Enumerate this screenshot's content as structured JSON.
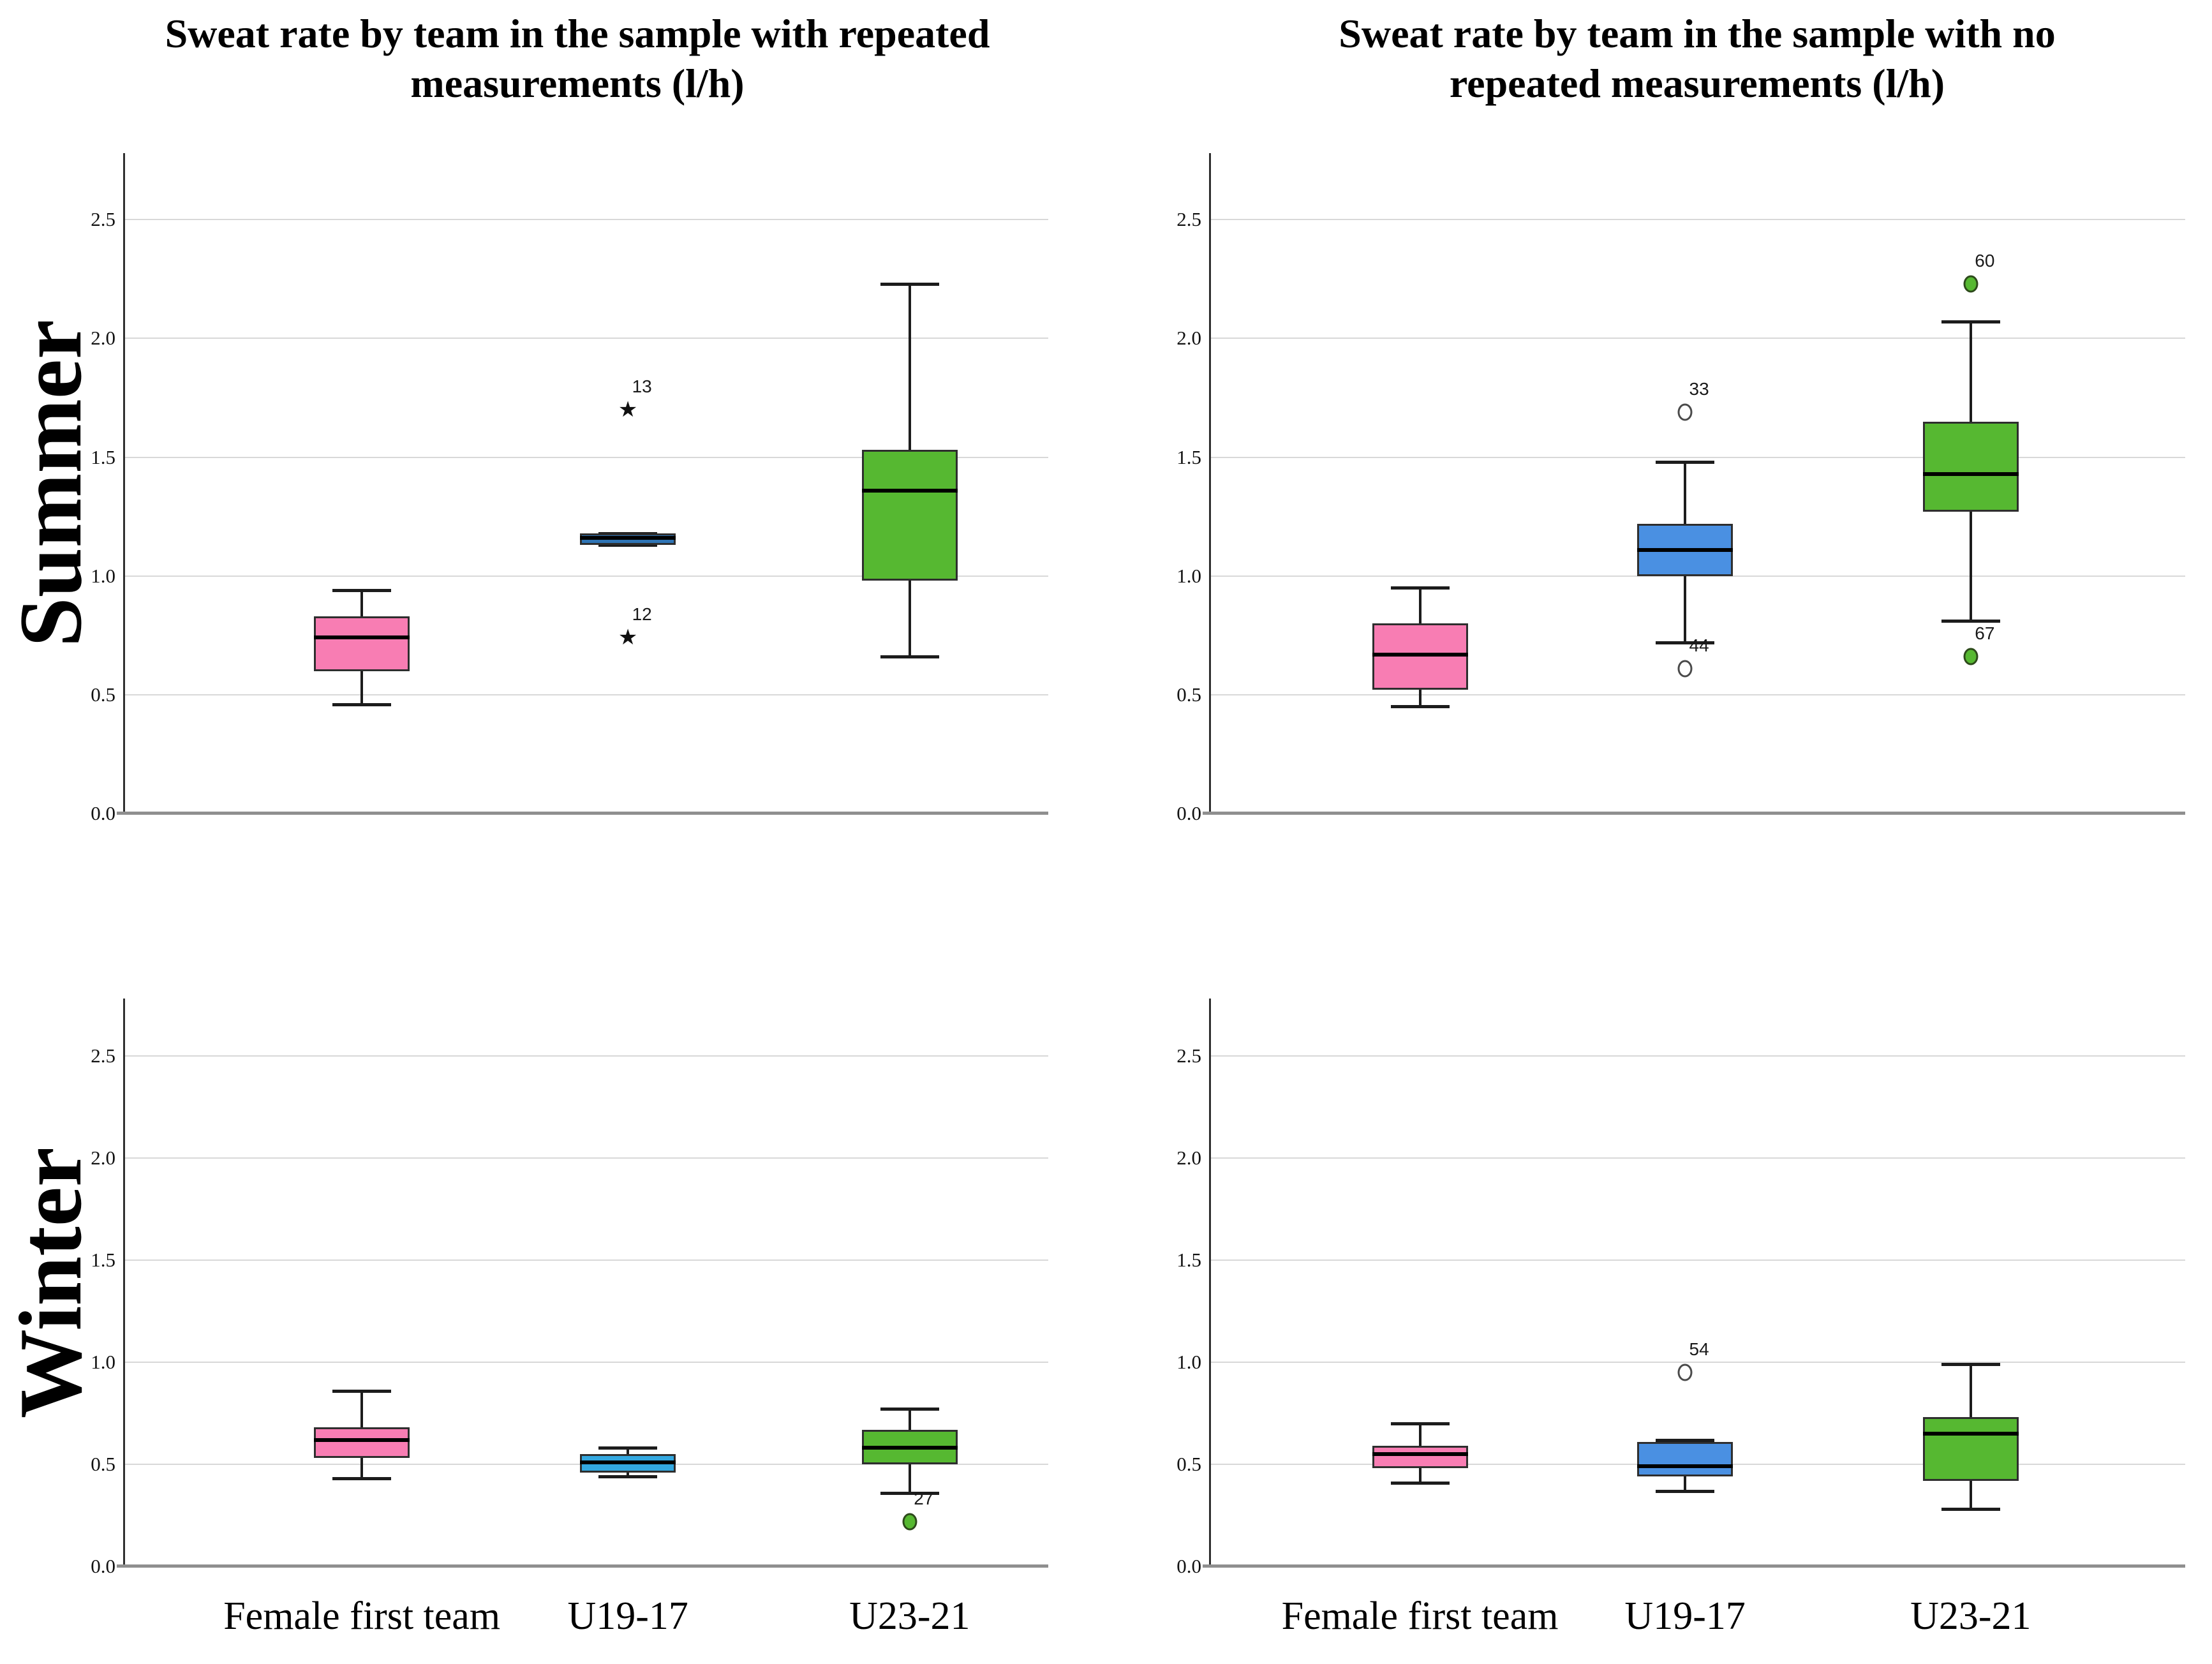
{
  "chart_data": {
    "type": "boxplot",
    "unit": "l/h",
    "col_titles": [
      "Sweat rate by team in the sample with repeated\nmeasurements (l/h)",
      "Sweat rate by team in the sample with no\nrepeated measurements (l/h)"
    ],
    "row_labels": [
      "Summer",
      "Winter"
    ],
    "categories": [
      "Female first team",
      "U19-17",
      "U23-21"
    ],
    "value_axis": {
      "min": 0,
      "max": 2.78,
      "ticks": [
        "0.0",
        "0.5",
        "1.0",
        "1.5",
        "2.0",
        "2.5"
      ],
      "tick_values": [
        0,
        0.5,
        1.0,
        1.5,
        2.0,
        2.5
      ],
      "gridline_color": "#d8d8d8",
      "grid": true
    },
    "legend": "none",
    "panels": [
      {
        "season": "Summer",
        "sample": "repeated measurements",
        "boxes": [
          {
            "team": "Female first team",
            "fill": "#F87DB3",
            "whisker_low": 0.46,
            "q1": 0.6,
            "median": 0.74,
            "q3": 0.83,
            "whisker_high": 0.94,
            "outliers": []
          },
          {
            "team": "U19-17",
            "fill": "#2E74B5",
            "whisker_low": 1.13,
            "q1": 1.13,
            "median": 1.16,
            "q3": 1.18,
            "whisker_high": 1.18,
            "outliers": [
              {
                "label": "13",
                "value": 1.7,
                "marker": "star"
              },
              {
                "label": "12",
                "value": 0.74,
                "marker": "star"
              }
            ]
          },
          {
            "team": "U23-21",
            "fill": "#56B831",
            "whisker_low": 0.66,
            "q1": 0.98,
            "median": 1.36,
            "q3": 1.53,
            "whisker_high": 2.23,
            "outliers": []
          }
        ]
      },
      {
        "season": "Summer",
        "sample": "no repeated measurements",
        "boxes": [
          {
            "team": "Female first team",
            "fill": "#F87DB3",
            "whisker_low": 0.45,
            "q1": 0.52,
            "median": 0.67,
            "q3": 0.8,
            "whisker_high": 0.95,
            "outliers": []
          },
          {
            "team": "U19-17",
            "fill": "#4A90E2",
            "whisker_low": 0.72,
            "q1": 1.0,
            "median": 1.11,
            "q3": 1.22,
            "whisker_high": 1.48,
            "outliers": [
              {
                "label": "33",
                "value": 1.69,
                "marker": "open-circle"
              },
              {
                "label": "44",
                "value": 0.61,
                "marker": "open-circle"
              }
            ]
          },
          {
            "team": "U23-21",
            "fill": "#56B831",
            "whisker_low": 0.81,
            "q1": 1.27,
            "median": 1.43,
            "q3": 1.65,
            "whisker_high": 2.07,
            "outliers": [
              {
                "label": "60",
                "value": 2.23,
                "marker": "filled-circle"
              },
              {
                "label": "67",
                "value": 0.66,
                "marker": "filled-circle"
              }
            ]
          }
        ]
      },
      {
        "season": "Winter",
        "sample": "repeated measurements",
        "boxes": [
          {
            "team": "Female first team",
            "fill": "#F87DB3",
            "whisker_low": 0.43,
            "q1": 0.53,
            "median": 0.62,
            "q3": 0.68,
            "whisker_high": 0.86,
            "outliers": []
          },
          {
            "team": "U19-17",
            "fill": "#33A8E0",
            "whisker_low": 0.44,
            "q1": 0.46,
            "median": 0.51,
            "q3": 0.55,
            "whisker_high": 0.58,
            "outliers": []
          },
          {
            "team": "U23-21",
            "fill": "#56B831",
            "whisker_low": 0.36,
            "q1": 0.5,
            "median": 0.58,
            "q3": 0.67,
            "whisker_high": 0.77,
            "outliers": [
              {
                "label": "27",
                "value": 0.22,
                "marker": "filled-circle"
              }
            ]
          }
        ]
      },
      {
        "season": "Winter",
        "sample": "no repeated measurements",
        "boxes": [
          {
            "team": "Female first team",
            "fill": "#F87DB3",
            "whisker_low": 0.41,
            "q1": 0.48,
            "median": 0.55,
            "q3": 0.59,
            "whisker_high": 0.7,
            "outliers": []
          },
          {
            "team": "U19-17",
            "fill": "#4A90E2",
            "whisker_low": 0.37,
            "q1": 0.44,
            "median": 0.49,
            "q3": 0.61,
            "whisker_high": 0.62,
            "outliers": [
              {
                "label": "54",
                "value": 0.95,
                "marker": "open-circle"
              }
            ]
          },
          {
            "team": "U23-21",
            "fill": "#56B831",
            "whisker_low": 0.28,
            "q1": 0.42,
            "median": 0.65,
            "q3": 0.73,
            "whisker_high": 0.99,
            "outliers": []
          }
        ]
      }
    ]
  }
}
